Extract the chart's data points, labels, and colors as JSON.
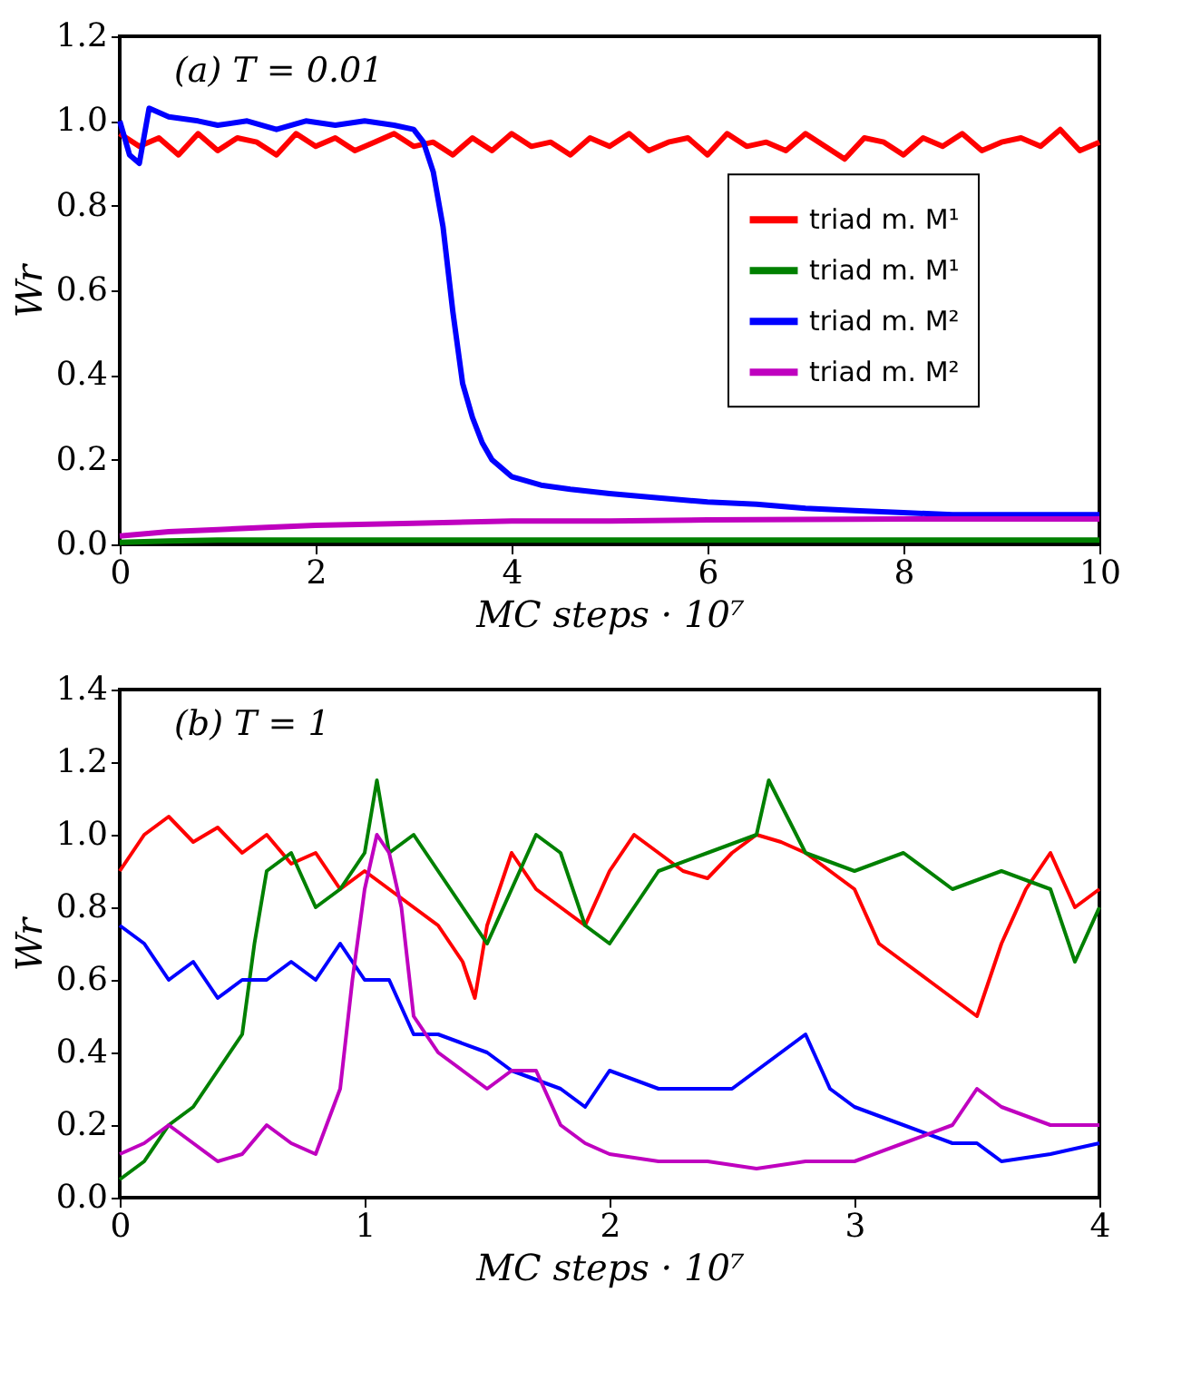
{
  "chart_data": [
    {
      "type": "line",
      "xlabel": "MC steps    · 10⁷",
      "ylabel": "Wr",
      "annotations": [
        "(a)    T = 0.01"
      ],
      "legend": "right",
      "grid": false,
      "xlim": [
        0,
        10
      ],
      "xticks": [
        0,
        2,
        4,
        6,
        8,
        10
      ],
      "ylim": [
        0,
        1.2
      ],
      "yticks": [
        {
          "value": 0,
          "label": "0.0"
        },
        {
          "value": 0.2,
          "label": "0.2"
        },
        {
          "value": 0.4,
          "label": "0.4"
        },
        {
          "value": 0.6,
          "label": "0.6"
        },
        {
          "value": 0.8,
          "label": "0.8"
        },
        {
          "value": 1.0,
          "label": "1.0"
        },
        {
          "value": 1.2,
          "label": "1.2"
        }
      ],
      "series": [
        {
          "name": "triad m. M¹",
          "color": "#ff0000",
          "x": [
            0,
            0.2,
            0.4,
            0.6,
            0.8,
            1,
            1.2,
            1.4,
            1.6,
            1.8,
            2,
            2.2,
            2.4,
            2.6,
            2.8,
            3,
            3.2,
            3.4,
            3.6,
            3.8,
            4,
            4.2,
            4.4,
            4.6,
            4.8,
            5,
            5.2,
            5.4,
            5.6,
            5.8,
            6,
            6.2,
            6.4,
            6.6,
            6.8,
            7,
            7.2,
            7.4,
            7.6,
            7.8,
            8,
            8.2,
            8.4,
            8.6,
            8.8,
            9,
            9.2,
            9.4,
            9.6,
            9.8,
            10
          ],
          "values": [
            0.97,
            0.94,
            0.96,
            0.92,
            0.97,
            0.93,
            0.96,
            0.95,
            0.92,
            0.97,
            0.94,
            0.96,
            0.93,
            0.95,
            0.97,
            0.94,
            0.95,
            0.92,
            0.96,
            0.93,
            0.97,
            0.94,
            0.95,
            0.92,
            0.96,
            0.94,
            0.97,
            0.93,
            0.95,
            0.96,
            0.92,
            0.97,
            0.94,
            0.95,
            0.93,
            0.97,
            0.94,
            0.91,
            0.96,
            0.95,
            0.92,
            0.96,
            0.94,
            0.97,
            0.93,
            0.95,
            0.96,
            0.94,
            0.98,
            0.93,
            0.95
          ]
        },
        {
          "name": "triad m. M¹",
          "color": "#008000",
          "x": [
            0,
            0.5,
            1,
            2,
            4,
            6,
            8,
            10
          ],
          "values": [
            0.005,
            0.008,
            0.01,
            0.01,
            0.01,
            0.01,
            0.01,
            0.01
          ]
        },
        {
          "name": "triad m. M²",
          "color": "#0000ff",
          "x": [
            0,
            0.1,
            0.2,
            0.3,
            0.5,
            0.8,
            1,
            1.3,
            1.6,
            1.9,
            2.2,
            2.5,
            2.8,
            3.0,
            3.1,
            3.2,
            3.3,
            3.4,
            3.5,
            3.6,
            3.7,
            3.8,
            4.0,
            4.3,
            4.6,
            5.0,
            5.5,
            6.0,
            6.5,
            7.0,
            7.5,
            8.0,
            8.5,
            9.0,
            9.5,
            10
          ],
          "values": [
            1.0,
            0.92,
            0.9,
            1.03,
            1.01,
            1.0,
            0.99,
            1.0,
            0.98,
            1.0,
            0.99,
            1.0,
            0.99,
            0.98,
            0.95,
            0.88,
            0.75,
            0.55,
            0.38,
            0.3,
            0.24,
            0.2,
            0.16,
            0.14,
            0.13,
            0.12,
            0.11,
            0.1,
            0.095,
            0.085,
            0.08,
            0.075,
            0.07,
            0.07,
            0.07,
            0.07
          ]
        },
        {
          "name": "triad m. M²",
          "color": "#bf00bf",
          "x": [
            0,
            0.5,
            1,
            1.5,
            2,
            3,
            4,
            5,
            6,
            8,
            10
          ],
          "values": [
            0.02,
            0.03,
            0.035,
            0.04,
            0.045,
            0.05,
            0.055,
            0.055,
            0.058,
            0.06,
            0.06
          ]
        }
      ]
    },
    {
      "type": "line",
      "xlabel": "MC steps    · 10⁷",
      "ylabel": "Wr",
      "annotations": [
        "(b)    T = 1"
      ],
      "grid": false,
      "xlim": [
        0,
        4
      ],
      "xticks": [
        0,
        1,
        2,
        3,
        4
      ],
      "ylim": [
        0,
        1.4
      ],
      "yticks": [
        {
          "value": 0,
          "label": "0.0"
        },
        {
          "value": 0.2,
          "label": "0.2"
        },
        {
          "value": 0.4,
          "label": "0.4"
        },
        {
          "value": 0.6,
          "label": "0.6"
        },
        {
          "value": 0.8,
          "label": "0.8"
        },
        {
          "value": 1.0,
          "label": "1.0"
        },
        {
          "value": 1.2,
          "label": "1.2"
        },
        {
          "value": 1.4,
          "label": "1.4"
        }
      ],
      "series": [
        {
          "color": "#ff0000",
          "x": [
            0,
            0.1,
            0.2,
            0.3,
            0.4,
            0.5,
            0.6,
            0.7,
            0.8,
            0.9,
            1.0,
            1.1,
            1.2,
            1.3,
            1.4,
            1.45,
            1.5,
            1.6,
            1.7,
            1.8,
            1.9,
            2.0,
            2.1,
            2.2,
            2.3,
            2.4,
            2.5,
            2.6,
            2.7,
            2.8,
            2.9,
            3.0,
            3.1,
            3.2,
            3.3,
            3.4,
            3.5,
            3.6,
            3.7,
            3.8,
            3.9,
            4.0
          ],
          "values": [
            0.9,
            1.0,
            1.05,
            0.98,
            1.02,
            0.95,
            1.0,
            0.92,
            0.95,
            0.85,
            0.9,
            0.85,
            0.8,
            0.75,
            0.65,
            0.55,
            0.75,
            0.95,
            0.85,
            0.8,
            0.75,
            0.9,
            1.0,
            0.95,
            0.9,
            0.88,
            0.95,
            1.0,
            0.98,
            0.95,
            0.9,
            0.85,
            0.7,
            0.65,
            0.6,
            0.55,
            0.5,
            0.7,
            0.85,
            0.95,
            0.8,
            0.85
          ]
        },
        {
          "color": "#008000",
          "x": [
            0,
            0.1,
            0.2,
            0.3,
            0.4,
            0.5,
            0.55,
            0.6,
            0.7,
            0.8,
            0.9,
            1.0,
            1.05,
            1.1,
            1.2,
            1.3,
            1.4,
            1.5,
            1.6,
            1.7,
            1.8,
            1.9,
            2.0,
            2.1,
            2.2,
            2.4,
            2.6,
            2.65,
            2.8,
            3.0,
            3.2,
            3.4,
            3.6,
            3.8,
            3.9,
            4.0
          ],
          "values": [
            0.05,
            0.1,
            0.2,
            0.25,
            0.35,
            0.45,
            0.7,
            0.9,
            0.95,
            0.8,
            0.85,
            0.95,
            1.15,
            0.95,
            1.0,
            0.9,
            0.8,
            0.7,
            0.85,
            1.0,
            0.95,
            0.75,
            0.7,
            0.8,
            0.9,
            0.95,
            1.0,
            1.15,
            0.95,
            0.9,
            0.95,
            0.85,
            0.9,
            0.85,
            0.65,
            0.8
          ]
        },
        {
          "color": "#0000ff",
          "x": [
            0,
            0.1,
            0.2,
            0.3,
            0.4,
            0.5,
            0.6,
            0.7,
            0.8,
            0.9,
            1.0,
            1.1,
            1.2,
            1.3,
            1.5,
            1.6,
            1.8,
            1.9,
            2.0,
            2.2,
            2.4,
            2.5,
            2.6,
            2.7,
            2.8,
            2.9,
            3.0,
            3.2,
            3.4,
            3.5,
            3.6,
            3.8,
            4.0
          ],
          "values": [
            0.75,
            0.7,
            0.6,
            0.65,
            0.55,
            0.6,
            0.6,
            0.65,
            0.6,
            0.7,
            0.6,
            0.6,
            0.45,
            0.45,
            0.4,
            0.35,
            0.3,
            0.25,
            0.35,
            0.3,
            0.3,
            0.3,
            0.35,
            0.4,
            0.45,
            0.3,
            0.25,
            0.2,
            0.15,
            0.15,
            0.1,
            0.12,
            0.15
          ]
        },
        {
          "color": "#bf00bf",
          "x": [
            0,
            0.1,
            0.2,
            0.3,
            0.4,
            0.5,
            0.6,
            0.7,
            0.8,
            0.9,
            0.95,
            1.0,
            1.05,
            1.1,
            1.15,
            1.2,
            1.3,
            1.4,
            1.5,
            1.6,
            1.7,
            1.8,
            1.9,
            2.0,
            2.2,
            2.4,
            2.6,
            2.8,
            3.0,
            3.2,
            3.4,
            3.5,
            3.6,
            3.8,
            4.0
          ],
          "values": [
            0.12,
            0.15,
            0.2,
            0.15,
            0.1,
            0.12,
            0.2,
            0.15,
            0.12,
            0.3,
            0.6,
            0.85,
            1.0,
            0.95,
            0.8,
            0.5,
            0.4,
            0.35,
            0.3,
            0.35,
            0.35,
            0.2,
            0.15,
            0.12,
            0.1,
            0.1,
            0.08,
            0.1,
            0.1,
            0.15,
            0.2,
            0.3,
            0.25,
            0.2,
            0.2
          ]
        }
      ]
    }
  ]
}
